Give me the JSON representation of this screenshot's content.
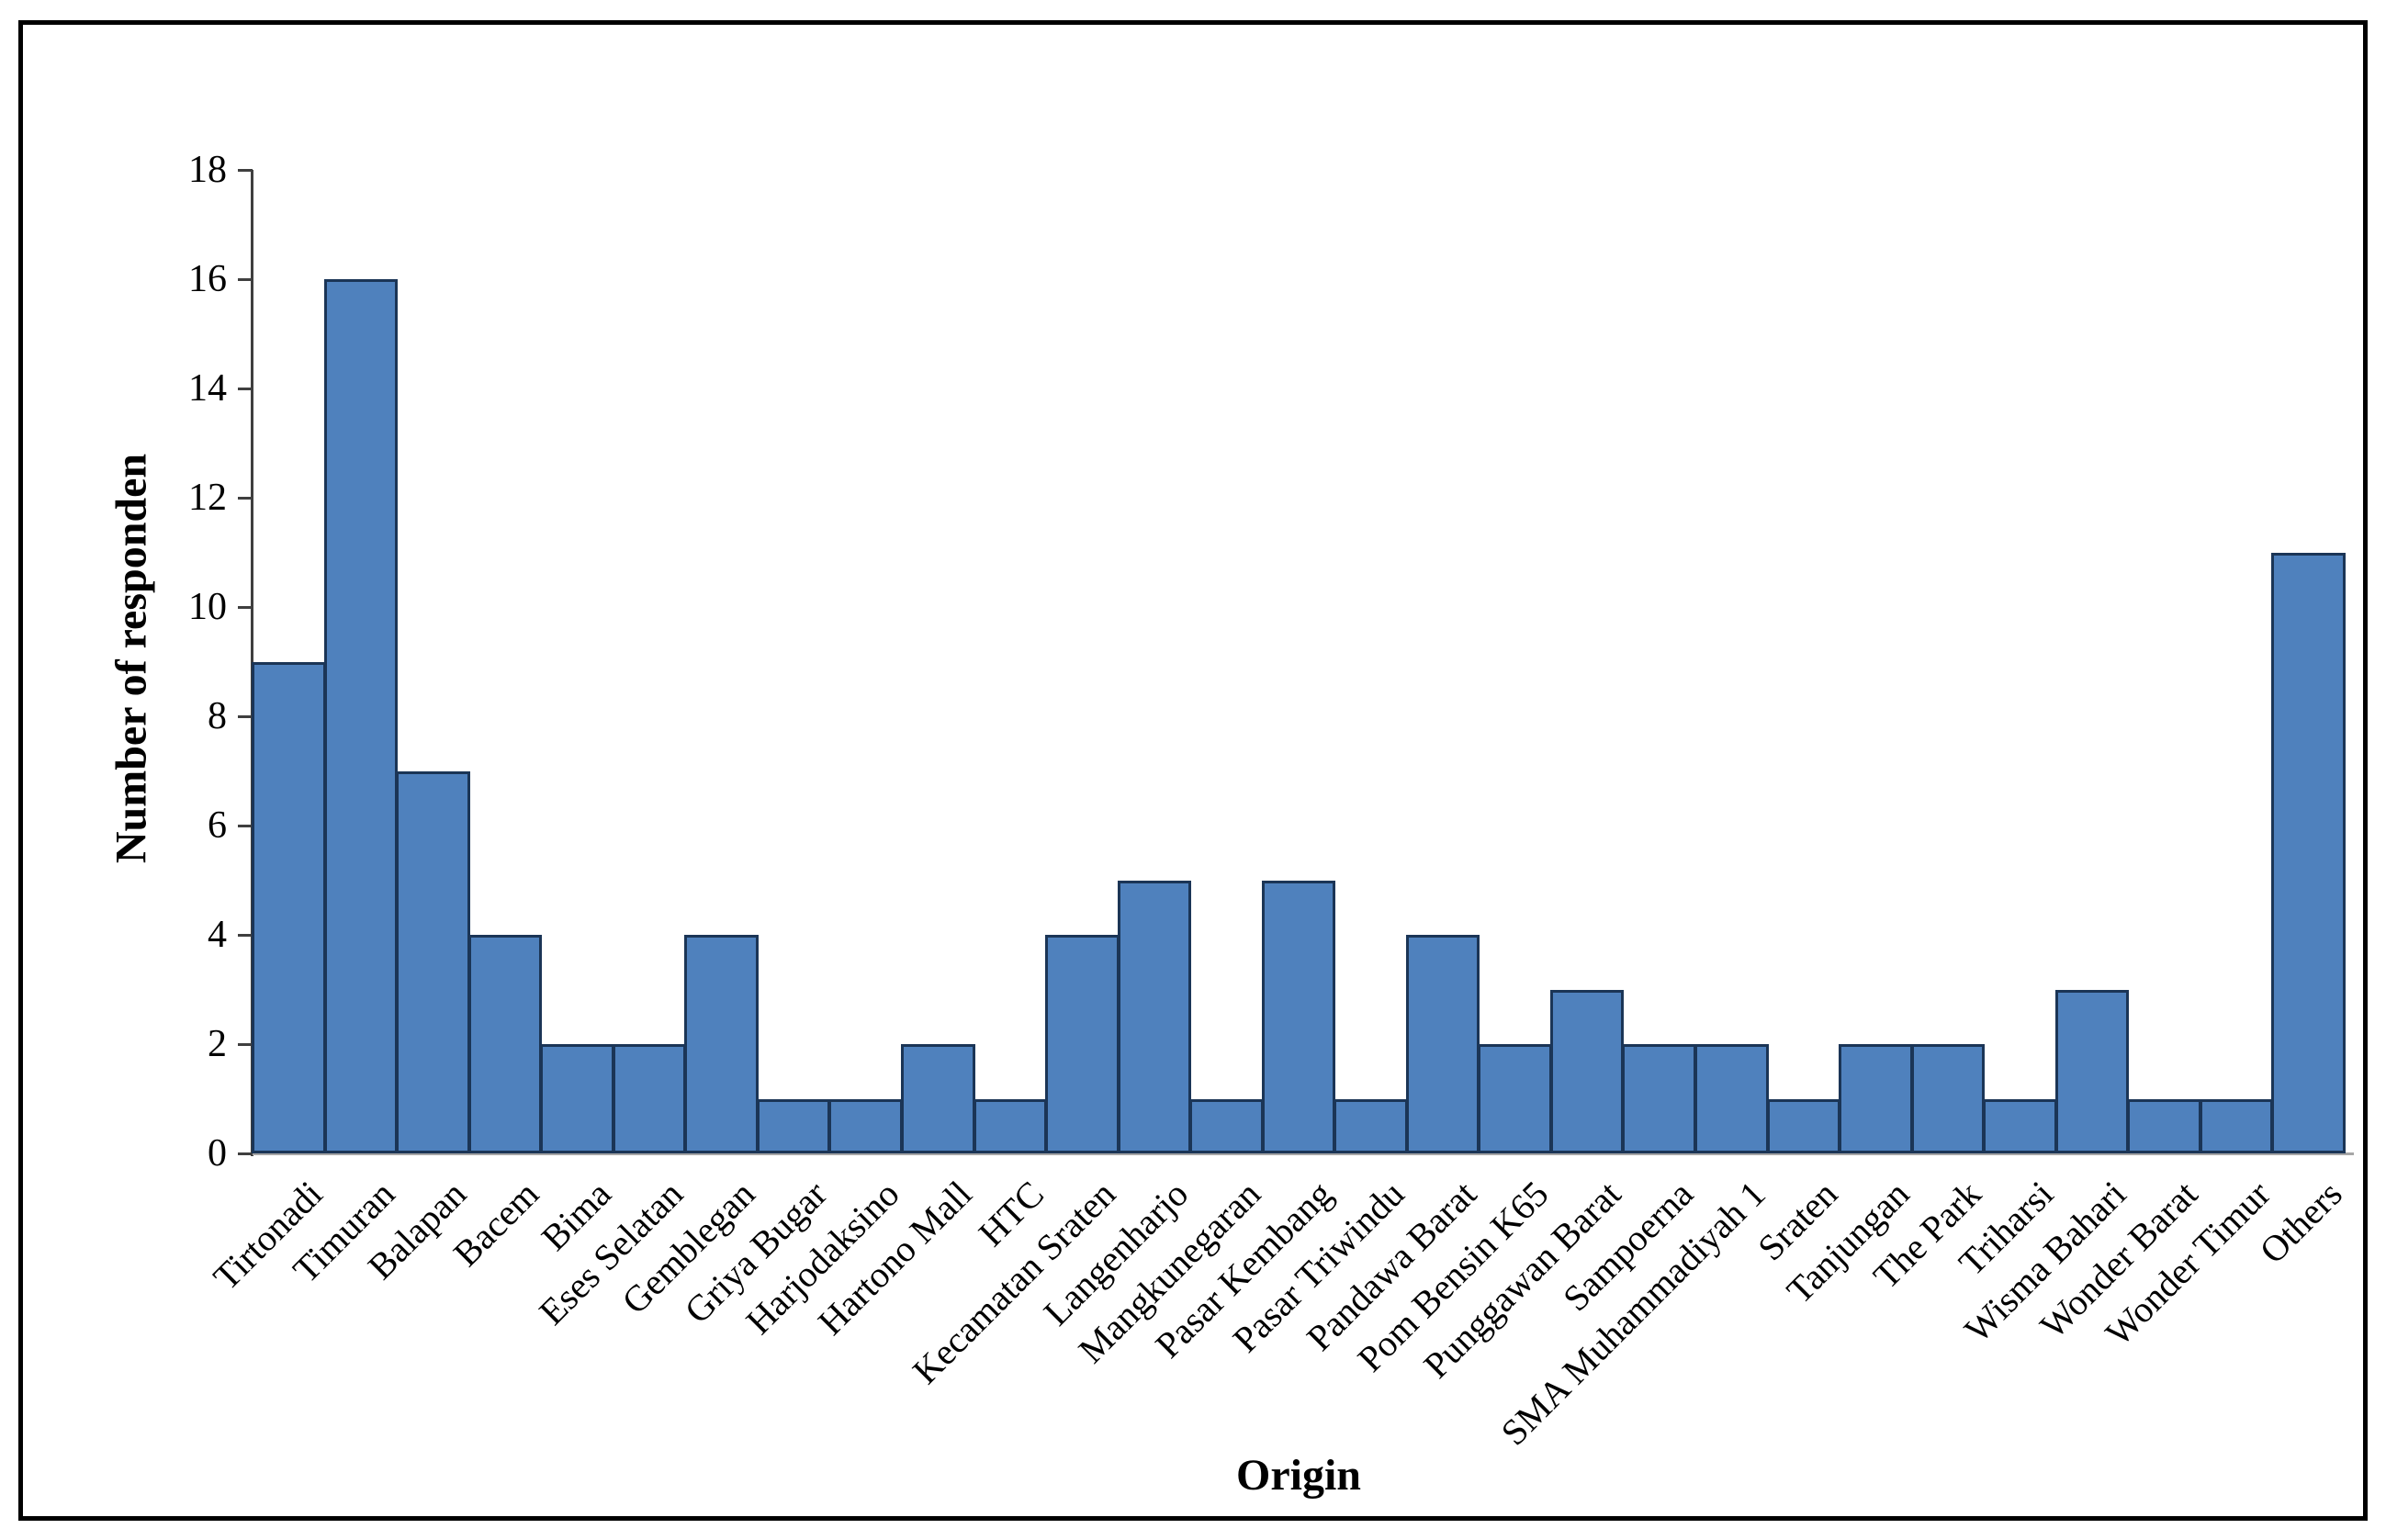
{
  "figure": {
    "background": "#ffffff",
    "border_color": "#000000"
  },
  "chart_data": {
    "type": "bar",
    "title": "",
    "xlabel": "Origin",
    "ylabel": "Number of responden",
    "categories": [
      "Tirtonadi",
      "Timuran",
      "Balapan",
      "Bacem",
      "Bima",
      "Eses Selatan",
      "Gemblegan",
      "Griya Bugar",
      "Harjodaksino",
      "Hartono Mall",
      "HTC",
      "Kecamatan Sraten",
      "Langenharjo",
      "Mangkunegaran",
      "Pasar Kembang",
      "Pasar Triwindu",
      "Pandawa Barat",
      "Pom Bensin K65",
      "Punggawan Barat",
      "Sampoerna",
      "SMA Muhammadiyah 1",
      "Sraten",
      "Tanjungan",
      "The Park",
      "Triharsi",
      "Wisma Bahari",
      "Wonder Barat",
      "Wonder Timur",
      "Others"
    ],
    "values": [
      9,
      16,
      7,
      4,
      2,
      2,
      4,
      1,
      1,
      2,
      1,
      4,
      5,
      1,
      5,
      1,
      4,
      2,
      3,
      2,
      2,
      1,
      2,
      2,
      1,
      3,
      1,
      1,
      11
    ],
    "ylim": [
      0,
      18
    ],
    "ytick_step": 2,
    "yticks": [
      0,
      2,
      4,
      6,
      8,
      10,
      12,
      14,
      16,
      18
    ],
    "grid": "off",
    "legend": "none",
    "bar_fill": "#4F81BD",
    "bar_border": "#1B3556",
    "axis_color": "#3F3F3F",
    "baseline_color": "#A6A6A6",
    "text_color": "#000000"
  }
}
